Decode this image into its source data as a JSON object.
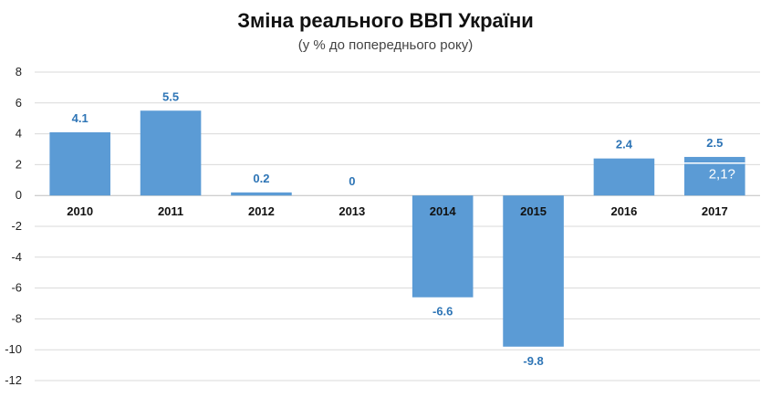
{
  "chart_data": {
    "type": "bar",
    "title": "Зміна реального ВВП України",
    "subtitle": "(у % до попереднього року)",
    "categories": [
      "2010",
      "2011",
      "2012",
      "2013",
      "2014",
      "2015",
      "2016",
      "2017"
    ],
    "values": [
      4.1,
      5.5,
      0.2,
      0,
      -6.6,
      -9.8,
      2.4,
      2.5
    ],
    "data_labels": [
      "4.1",
      "5.5",
      "0.2",
      "0",
      "-6.6",
      "-9.8",
      "2.4",
      "2.5"
    ],
    "ylim": [
      -12,
      8
    ],
    "yticks": [
      "8",
      "6",
      "4",
      "2",
      "0",
      "-2",
      "-4",
      "-6",
      "-8",
      "-10",
      "-12"
    ],
    "ytick_values": [
      8,
      6,
      4,
      2,
      0,
      -2,
      -4,
      -6,
      -8,
      -10,
      -12
    ],
    "grid": true,
    "legend": "none",
    "annotation": {
      "category": "2017",
      "value": 2.1,
      "text": "2,1?"
    },
    "colors": {
      "bar": "#5b9bd5",
      "data_label": "#2e75b6",
      "grid": "#d9d9d9",
      "axis": "#bfbfbf"
    }
  }
}
